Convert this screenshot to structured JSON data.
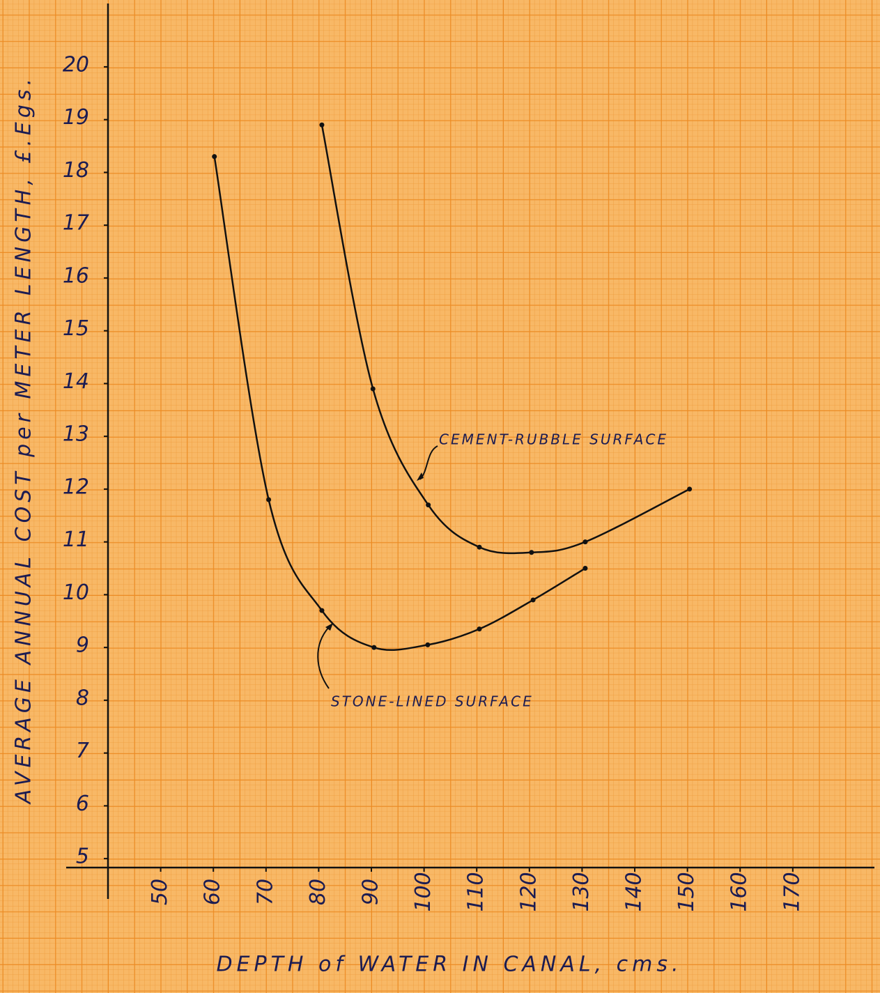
{
  "chart_data": {
    "type": "line",
    "x_label": "DEPTH of WATER IN CANAL, cms.",
    "y_label": "AVERAGE ANNUAL COST per METER LENGTH, £.Egs.",
    "annotations": [
      "CEMENT-RUBBLE SURFACE",
      "STONE-LINED SURFACE"
    ],
    "xlim": [
      40,
      185.5
    ],
    "ylim": [
      4.83,
      21.2
    ],
    "xticks": [
      50,
      60,
      70,
      80,
      90,
      100,
      110,
      120,
      130,
      140,
      150,
      160,
      170
    ],
    "yticks": [
      5,
      6,
      7,
      8,
      9,
      10,
      11,
      12,
      13,
      14,
      15,
      16,
      17,
      18,
      19,
      20
    ],
    "series": [
      {
        "color": "#111111",
        "x": [
          80.6,
          90.3,
          100.8,
          110.5,
          120.4,
          130.6,
          150.4
        ],
        "values": [
          18.9,
          13.9,
          11.7,
          10.9,
          10.8,
          11.0,
          12.0
        ]
      },
      {
        "color": "#111111",
        "x": [
          60.2,
          70.5,
          80.6,
          90.5,
          100.7,
          110.5,
          120.7,
          130.6
        ],
        "values": [
          18.3,
          11.8,
          9.7,
          9.0,
          9.05,
          9.35,
          9.9,
          10.5
        ]
      }
    ]
  }
}
